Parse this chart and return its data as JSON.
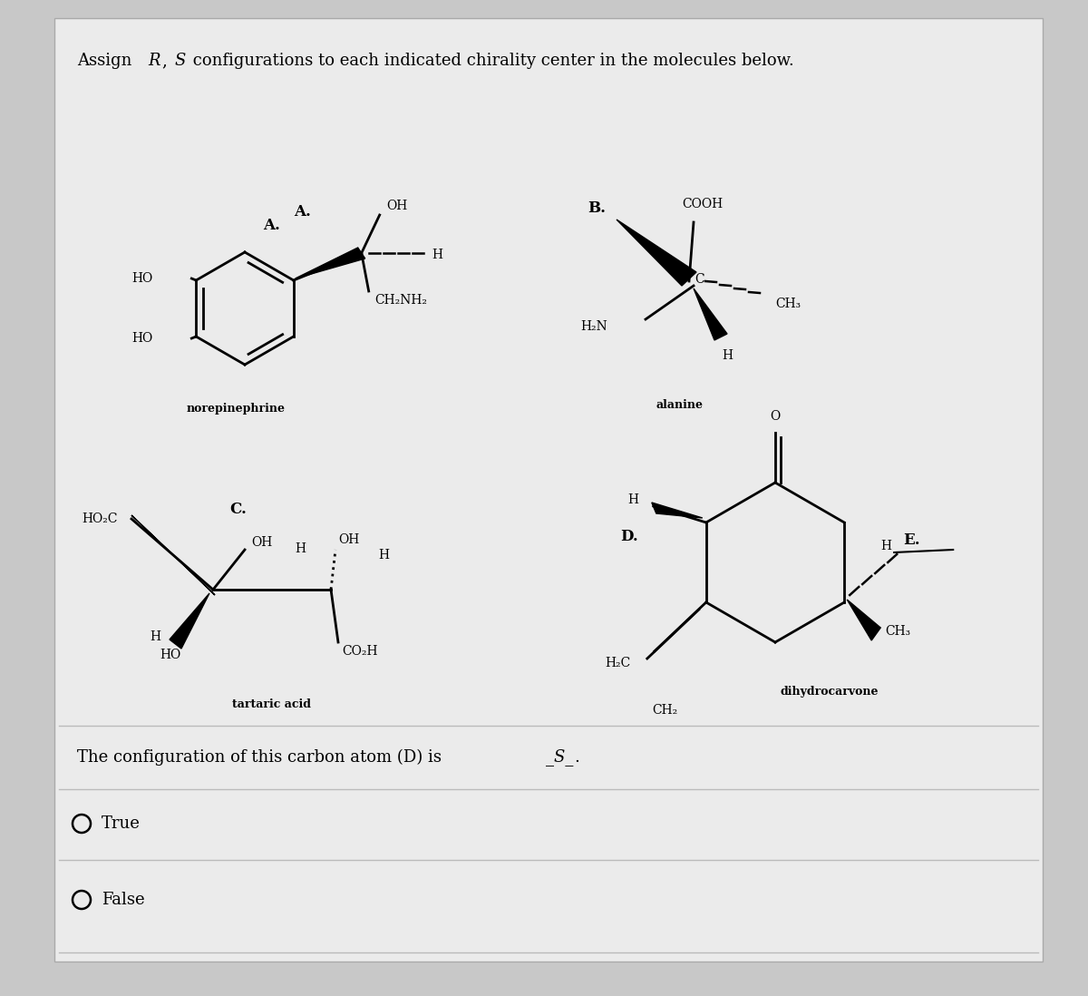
{
  "title_prefix": "Assign ",
  "title_R": "R",
  "title_comma": ", ",
  "title_S": "S",
  "title_suffix": " configurations to each indicated chirality center in the molecules below.",
  "bg_color": "#c8c8c8",
  "panel_bg": "#ebebeb",
  "panel_bg2": "#f0f0f0",
  "text_color": "#111111",
  "question_text1": "The configuration of this carbon atom (D) is ",
  "question_text2": "_S_",
  "question_text3": ".",
  "true_label": "True",
  "false_label": "False",
  "font_size_title": 13,
  "font_size_mol": 10,
  "font_size_label": 11,
  "font_size_q": 13
}
